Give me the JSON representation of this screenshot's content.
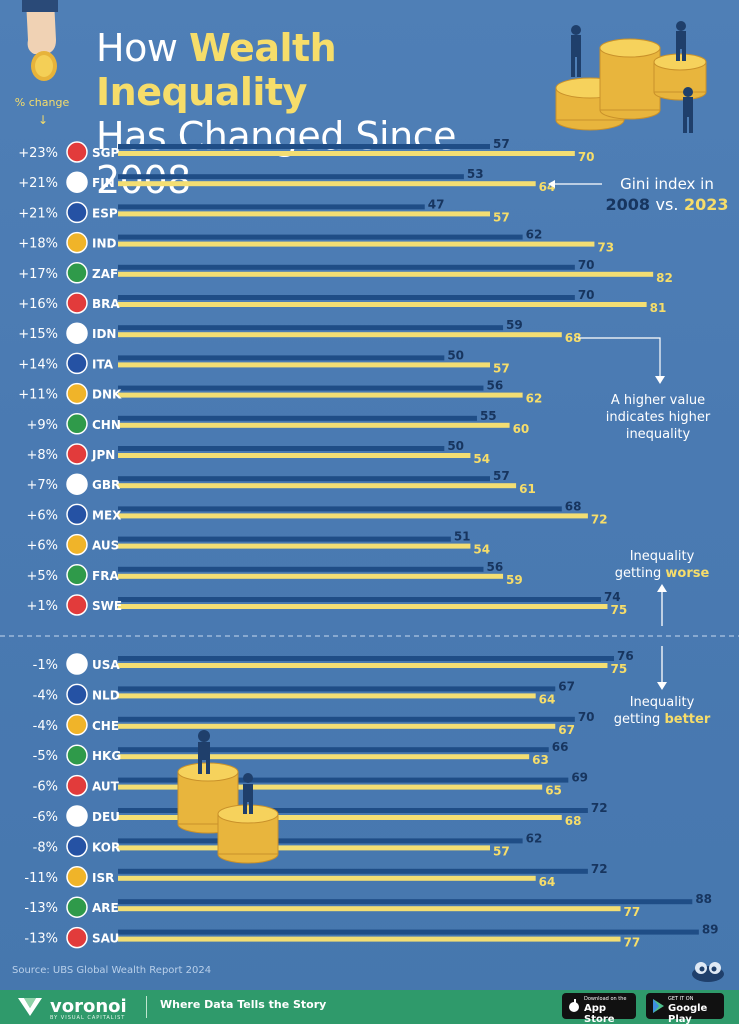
{
  "title": {
    "line1_pre": "How ",
    "line1_hl": "Wealth Inequality",
    "line2": "Has Changed Since 2008"
  },
  "pct_change_label": "% change",
  "legend": {
    "line1": "Gini index in",
    "year1": "2008",
    "vs": "vs.",
    "year2": "2023"
  },
  "annotation_higher": {
    "line1": "A higher value",
    "line2": "indicates higher",
    "line3": "inequality"
  },
  "annotation_worse": {
    "line1": "Inequality",
    "line2_pre": "getting ",
    "line2_hl": "worse"
  },
  "annotation_better": {
    "line1": "Inequality",
    "line2_pre": "getting ",
    "line2_hl": "better"
  },
  "source": "Source: UBS Global Wealth Report 2024",
  "footer": {
    "brand": "voronoi",
    "brand_sub": "BY VISUAL CAPITALIST",
    "tagline": "Where Data Tells the Story",
    "app_store_small": "Download on the",
    "app_store": "App Store",
    "google_play_small": "GET IT ON",
    "google_play": "Google Play"
  },
  "colors": {
    "bar_2008": "#1f4d86",
    "bar_2023": "#f3de73",
    "label_2008": "#17355f",
    "label_2023": "#f6dd6a",
    "footer": "#2f9a6b"
  },
  "chart_data": {
    "type": "bar",
    "orientation": "horizontal",
    "series": [
      {
        "name": "2008",
        "values": [
          57,
          53,
          47,
          62,
          70,
          70,
          59,
          50,
          56,
          55,
          50,
          57,
          68,
          51,
          56,
          74,
          76,
          67,
          70,
          66,
          69,
          72,
          62,
          72,
          88,
          89
        ]
      },
      {
        "name": "2023",
        "values": [
          70,
          64,
          57,
          73,
          82,
          81,
          68,
          57,
          62,
          60,
          54,
          61,
          72,
          54,
          59,
          75,
          75,
          64,
          67,
          63,
          65,
          68,
          57,
          64,
          77,
          77
        ]
      }
    ],
    "categories": [
      "SGP",
      "FIN",
      "ESP",
      "IND",
      "ZAF",
      "BRA",
      "IDN",
      "ITA",
      "DNK",
      "CHN",
      "JPN",
      "GBR",
      "MEX",
      "AUS",
      "FRA",
      "SWE",
      "USA",
      "NLD",
      "CHE",
      "HKG",
      "AUT",
      "DEU",
      "KOR",
      "ISR",
      "ARE",
      "SAU"
    ],
    "pct_change": [
      "+23%",
      "+21%",
      "+21%",
      "+18%",
      "+17%",
      "+16%",
      "+15%",
      "+14%",
      "+11%",
      "+9%",
      "+8%",
      "+7%",
      "+6%",
      "+6%",
      "+5%",
      "+1%",
      "-1%",
      "-4%",
      "-4%",
      "-5%",
      "-6%",
      "-6%",
      "-8%",
      "-11%",
      "-13%",
      "-13%"
    ],
    "xlim": [
      0,
      95
    ],
    "grid": false
  }
}
